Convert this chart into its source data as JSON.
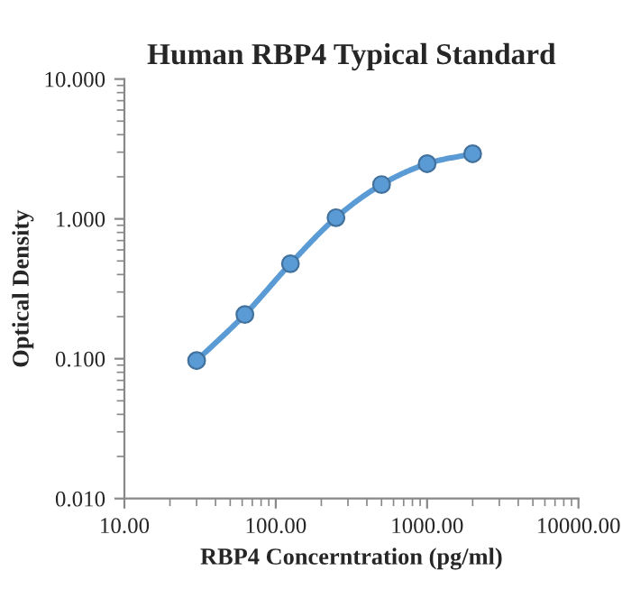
{
  "chart_data": {
    "type": "line",
    "title": "Human RBP4 Typical Standard",
    "xlabel": "RBP4 Concerntration (pg/ml)",
    "ylabel": "Optical Density",
    "x": [
      30,
      62.5,
      125,
      250,
      500,
      1000,
      2000
    ],
    "series": [
      {
        "color": "#5b9bd5",
        "values": [
          0.097,
          0.207,
          0.478,
          1.02,
          1.76,
          2.48,
          2.92
        ]
      }
    ],
    "log": "xy",
    "xlim": [
      10,
      10000
    ],
    "ylim": [
      0.01,
      10
    ],
    "xticks": [
      {
        "value": 10,
        "label": "10.00"
      },
      {
        "value": 100,
        "label": "100.00"
      },
      {
        "value": 1000,
        "label": "1000.00"
      },
      {
        "value": 10000,
        "label": "10000.00"
      }
    ],
    "yticks": [
      {
        "value": 0.01,
        "label": "0.010"
      },
      {
        "value": 0.1,
        "label": "0.100"
      },
      {
        "value": 1,
        "label": "1.000"
      },
      {
        "value": 10,
        "label": "10.000"
      }
    ],
    "marker": "circle",
    "line_style": "solid",
    "grid": false,
    "legend": false
  }
}
